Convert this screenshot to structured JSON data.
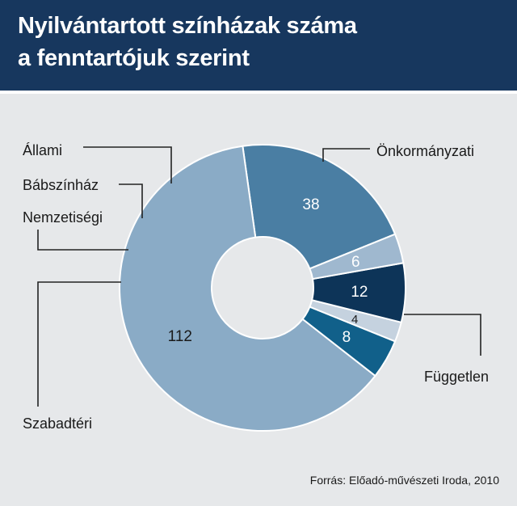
{
  "header": {
    "title_line1": "Nyilvántartott színházak száma",
    "title_line2": "a fenntartójuk szerint"
  },
  "source": "Forrás: Előadó-művészeti Iroda, 2010",
  "colors": {
    "header_bg": "#17375e",
    "background": "#e6e8ea",
    "Önkormányzati": "#4a7ea3",
    "Független": "#8aabc6",
    "Szabadtéri": "#11608a",
    "Nemzetiségi": "#c5d2df",
    "Bábszínház": "#0d3458",
    "Állami": "#9fb8cf"
  },
  "chart_data": {
    "type": "pie",
    "style": "donut",
    "title": "Nyilvántartott színházak száma a fenntartójuk szerint",
    "start_angle_deg": 22,
    "direction": "counterclockwise",
    "series": [
      {
        "name": "Önkormányzati",
        "value": 38
      },
      {
        "name": "Független",
        "value": 112
      },
      {
        "name": "Szabadtéri",
        "value": 8
      },
      {
        "name": "Nemzetiségi",
        "value": 4
      },
      {
        "name": "Bábszínház",
        "value": 12
      },
      {
        "name": "Állami",
        "value": 6
      }
    ],
    "source": "Forrás: Előadó-művészeti Iroda, 2010"
  }
}
